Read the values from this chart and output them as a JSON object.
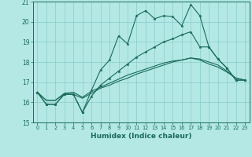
{
  "xlabel": "Humidex (Indice chaleur)",
  "bg_color": "#b3e8e5",
  "line_color": "#1a6b5a",
  "grid_color": "#88cccc",
  "xlim": [
    -0.5,
    23.5
  ],
  "ylim": [
    15,
    21
  ],
  "yticks": [
    15,
    16,
    17,
    18,
    19,
    20,
    21
  ],
  "xticks": [
    0,
    1,
    2,
    3,
    4,
    5,
    6,
    7,
    8,
    9,
    10,
    11,
    12,
    13,
    14,
    15,
    16,
    17,
    18,
    19,
    20,
    21,
    22,
    23
  ],
  "series": [
    [
      16.5,
      15.9,
      15.9,
      16.4,
      16.4,
      15.5,
      16.6,
      17.6,
      18.1,
      19.3,
      18.9,
      20.3,
      20.55,
      20.15,
      20.3,
      20.25,
      19.8,
      20.85,
      20.3,
      18.75,
      18.15,
      17.7,
      17.1,
      17.1
    ],
    [
      16.5,
      15.9,
      15.9,
      16.4,
      16.4,
      15.5,
      16.3,
      16.85,
      17.2,
      17.55,
      17.9,
      18.25,
      18.5,
      18.75,
      19.0,
      19.15,
      19.35,
      19.5,
      18.75,
      18.75,
      18.15,
      17.7,
      17.1,
      17.1
    ],
    [
      16.5,
      16.1,
      16.1,
      16.4,
      16.4,
      16.2,
      16.45,
      16.7,
      16.85,
      17.05,
      17.2,
      17.4,
      17.55,
      17.7,
      17.85,
      18.0,
      18.1,
      18.2,
      18.15,
      18.0,
      17.85,
      17.55,
      17.2,
      17.1
    ],
    [
      16.5,
      16.1,
      16.1,
      16.45,
      16.5,
      16.25,
      16.55,
      16.75,
      16.95,
      17.15,
      17.35,
      17.5,
      17.65,
      17.8,
      17.95,
      18.05,
      18.1,
      18.2,
      18.1,
      17.9,
      17.75,
      17.5,
      17.2,
      17.1
    ]
  ]
}
